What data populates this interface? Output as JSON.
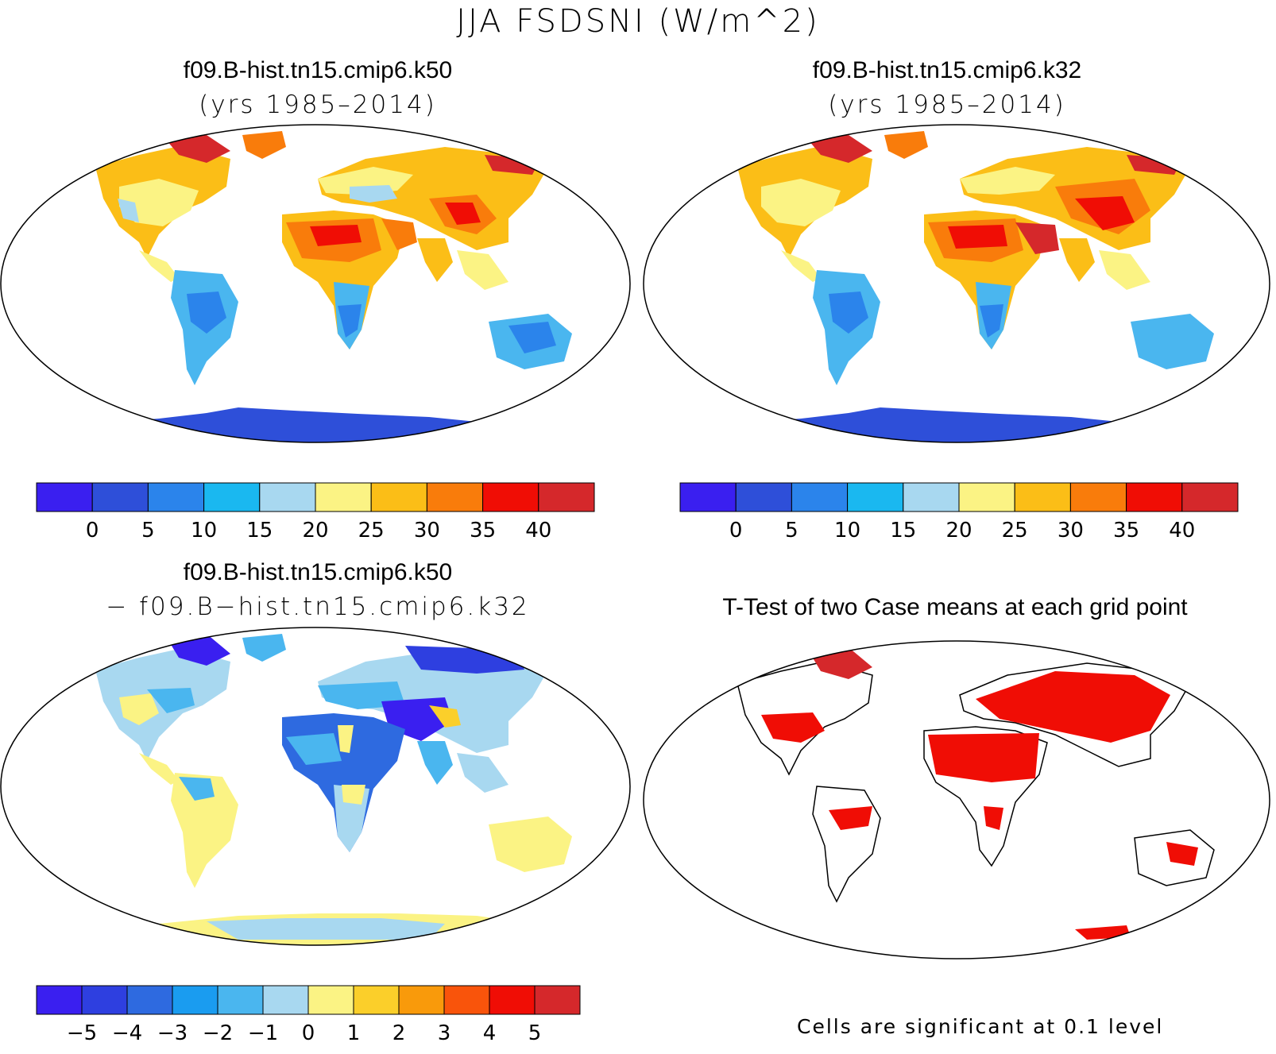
{
  "figure": {
    "title": "JJA FSDSNI (W/m^2)"
  },
  "panels": {
    "top_left": {
      "title": "f09.B-hist.tn15.cmip6.k50",
      "subtitle": "(yrs 1985–2014)",
      "colorbar": {
        "labels": [
          "0",
          "5",
          "10",
          "15",
          "20",
          "25",
          "30",
          "35",
          "40"
        ],
        "colors": [
          "#3a1ff0",
          "#2e4fd9",
          "#2b84eb",
          "#1ab8f0",
          "#a8d8f0",
          "#fbf384",
          "#fbbe17",
          "#f97c0b",
          "#f00d05",
          "#d5282b"
        ]
      }
    },
    "top_right": {
      "title": "f09.B-hist.tn15.cmip6.k32",
      "subtitle": "(yrs 1985–2014)",
      "colorbar": {
        "labels": [
          "0",
          "5",
          "10",
          "15",
          "20",
          "25",
          "30",
          "35",
          "40"
        ],
        "colors": [
          "#3a1ff0",
          "#2e4fd9",
          "#2b84eb",
          "#1ab8f0",
          "#a8d8f0",
          "#fbf384",
          "#fbbe17",
          "#f97c0b",
          "#f00d05",
          "#d5282b"
        ]
      }
    },
    "bottom_left": {
      "title": "f09.B-hist.tn15.cmip6.k50",
      "subtitle": "− f09.B−hist.tn15.cmip6.k32",
      "colorbar": {
        "labels": [
          "−5",
          "−4",
          "−3",
          "−2",
          "−1",
          "0",
          "1",
          "2",
          "3",
          "4",
          "5"
        ],
        "colors": [
          "#3a1ff0",
          "#2e3fe0",
          "#2e6ae0",
          "#1a9cf0",
          "#4ab6ef",
          "#a8d8f0",
          "#fbf384",
          "#fbcf2a",
          "#f99a0b",
          "#f9540b",
          "#f00d05",
          "#d5282b"
        ]
      }
    },
    "bottom_right": {
      "title": "T-Test of two Case means at each grid point",
      "footnote": "Cells are significant at 0.1 level",
      "significant_color": "#f00d05"
    }
  }
}
